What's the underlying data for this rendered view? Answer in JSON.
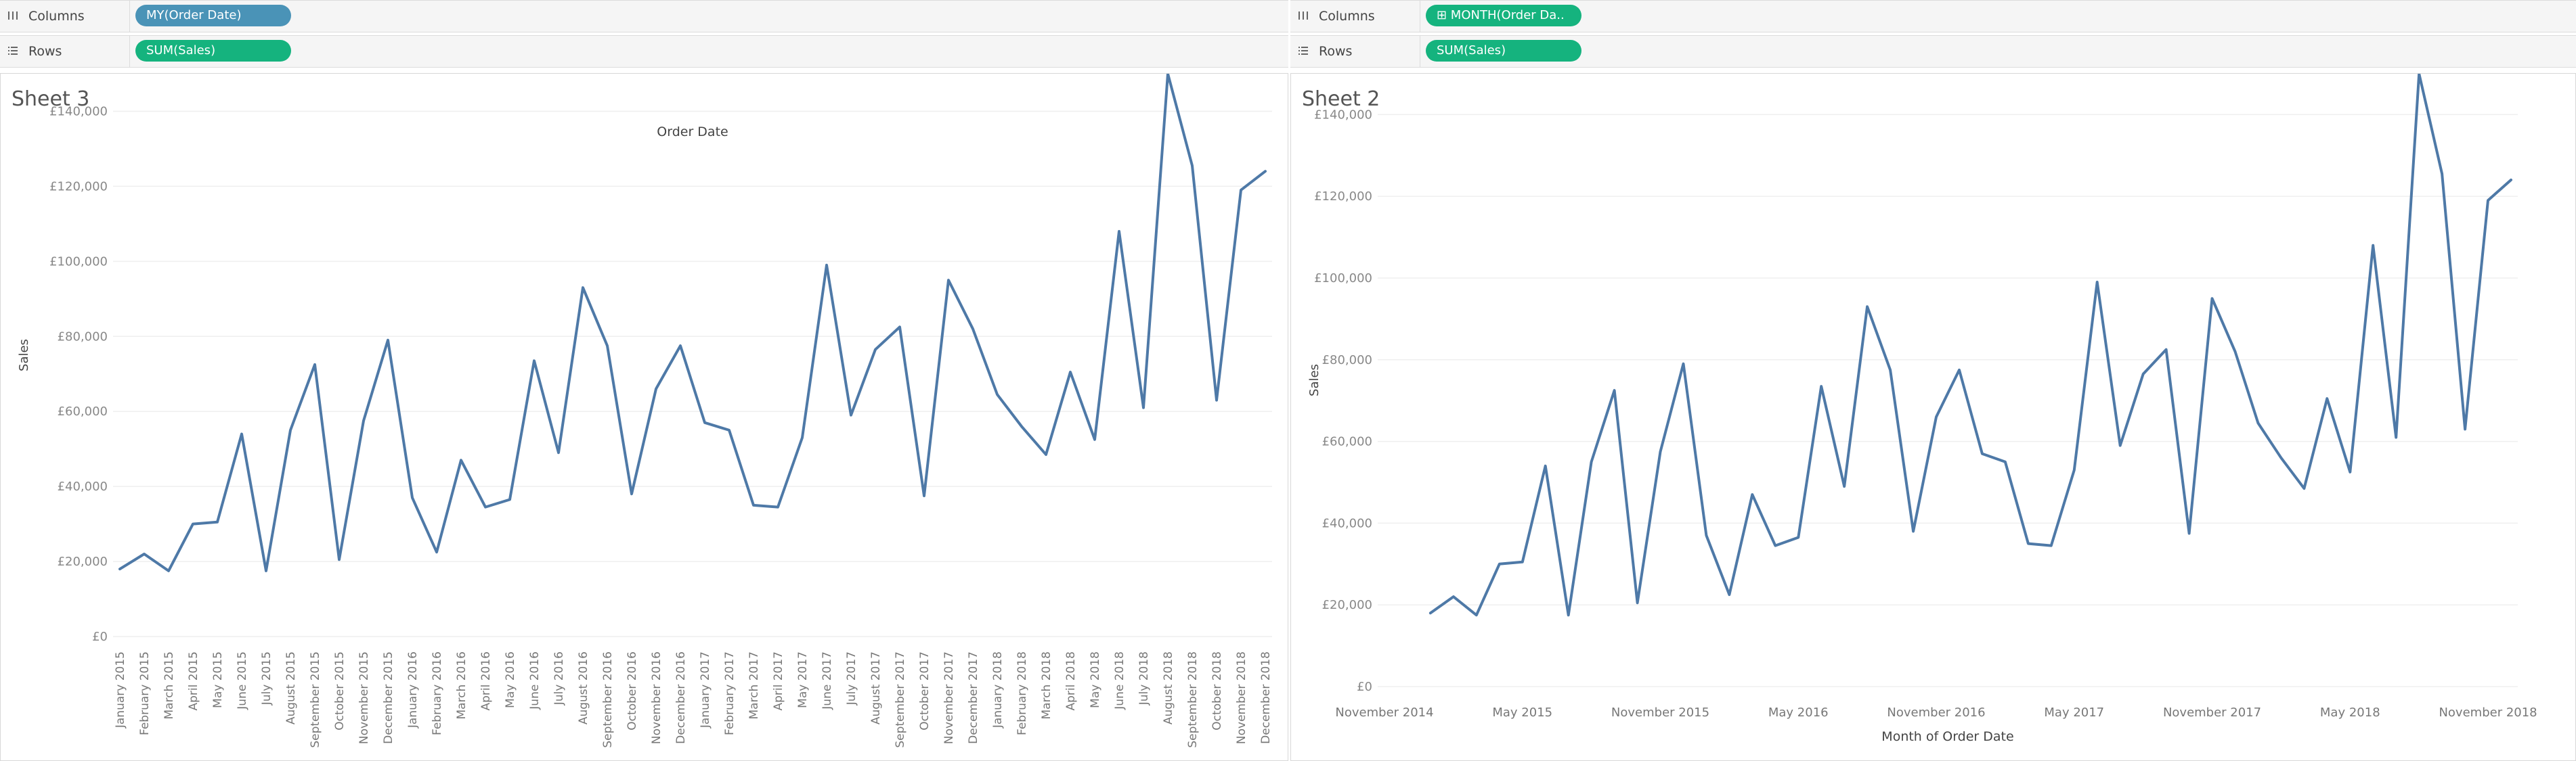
{
  "panes": [
    {
      "columns_label": "Columns",
      "columns_pill": "MY(Order Date)",
      "rows_label": "Rows",
      "rows_pill": "SUM(Sales)",
      "sheet_title": "Sheet 3"
    },
    {
      "columns_label": "Columns",
      "columns_pill": "⊞ MONTH(Order Da..",
      "rows_label": "Rows",
      "rows_pill": "SUM(Sales)",
      "sheet_title": "Sheet 2"
    }
  ],
  "colors": {
    "line": "#4e79a7",
    "pill_blue": "#4a93b7",
    "pill_green": "#15b37e"
  },
  "chart_data": [
    {
      "type": "line",
      "title": "Order Date",
      "xlabel": "",
      "ylabel": "Sales",
      "ylim": [
        0,
        150000
      ],
      "y_ticks": [
        0,
        20000,
        40000,
        60000,
        80000,
        100000,
        120000,
        140000
      ],
      "y_tick_labels": [
        "£0",
        "£20,000",
        "£40,000",
        "£60,000",
        "£80,000",
        "£100,000",
        "£120,000",
        "£140,000"
      ],
      "grid": true,
      "categories": [
        "January 2015",
        "February 2015",
        "March 2015",
        "April 2015",
        "May 2015",
        "June 2015",
        "July 2015",
        "August 2015",
        "September 2015",
        "October 2015",
        "November 2015",
        "December 2015",
        "January 2016",
        "February 2016",
        "March 2016",
        "April 2016",
        "May 2016",
        "June 2016",
        "July 2016",
        "August 2016",
        "September 2016",
        "October 2016",
        "November 2016",
        "December 2016",
        "January 2017",
        "February 2017",
        "March 2017",
        "April 2017",
        "May 2017",
        "June 2017",
        "July 2017",
        "August 2017",
        "September 2017",
        "October 2017",
        "November 2017",
        "December 2017",
        "January 2018",
        "February 2018",
        "March 2018",
        "April 2018",
        "May 2018",
        "June 2018",
        "July 2018",
        "August 2018",
        "September 2018",
        "October 2018",
        "November 2018",
        "December 2018"
      ],
      "values": [
        18000,
        22000,
        17500,
        30000,
        30500,
        54000,
        17500,
        55000,
        72500,
        20500,
        57500,
        79000,
        37000,
        22500,
        47000,
        34500,
        36500,
        73500,
        49000,
        93000,
        77500,
        38000,
        66000,
        77500,
        57000,
        55000,
        35000,
        34500,
        53000,
        99000,
        59000,
        76500,
        82500,
        37500,
        95000,
        82000,
        64500,
        56000,
        48500,
        70500,
        52500,
        108000,
        61000,
        150000,
        125500,
        63000,
        119000,
        124000
      ]
    },
    {
      "type": "line",
      "title": "",
      "xlabel": "Month of Order Date",
      "ylabel": "Sales",
      "ylim": [
        0,
        150000
      ],
      "y_ticks": [
        0,
        20000,
        40000,
        60000,
        80000,
        100000,
        120000,
        140000
      ],
      "y_tick_labels": [
        "£0",
        "£20,000",
        "£40,000",
        "£60,000",
        "£80,000",
        "£100,000",
        "£120,000",
        "£140,000"
      ],
      "x_tick_labels": [
        {
          "index": -2,
          "label": "November 2014"
        },
        {
          "index": 4,
          "label": "May 2015"
        },
        {
          "index": 10,
          "label": "November 2015"
        },
        {
          "index": 16,
          "label": "May 2016"
        },
        {
          "index": 22,
          "label": "November 2016"
        },
        {
          "index": 28,
          "label": "May 2017"
        },
        {
          "index": 34,
          "label": "November 2017"
        },
        {
          "index": 40,
          "label": "May 2018"
        },
        {
          "index": 46,
          "label": "November 2018"
        }
      ],
      "grid": true,
      "values": [
        18000,
        22000,
        17500,
        30000,
        30500,
        54000,
        17500,
        55000,
        72500,
        20500,
        57500,
        79000,
        37000,
        22500,
        47000,
        34500,
        36500,
        73500,
        49000,
        93000,
        77500,
        38000,
        66000,
        77500,
        57000,
        55000,
        35000,
        34500,
        53000,
        99000,
        59000,
        76500,
        82500,
        37500,
        95000,
        82000,
        64500,
        56000,
        48500,
        70500,
        52500,
        108000,
        61000,
        150000,
        125500,
        63000,
        119000,
        124000
      ]
    }
  ]
}
